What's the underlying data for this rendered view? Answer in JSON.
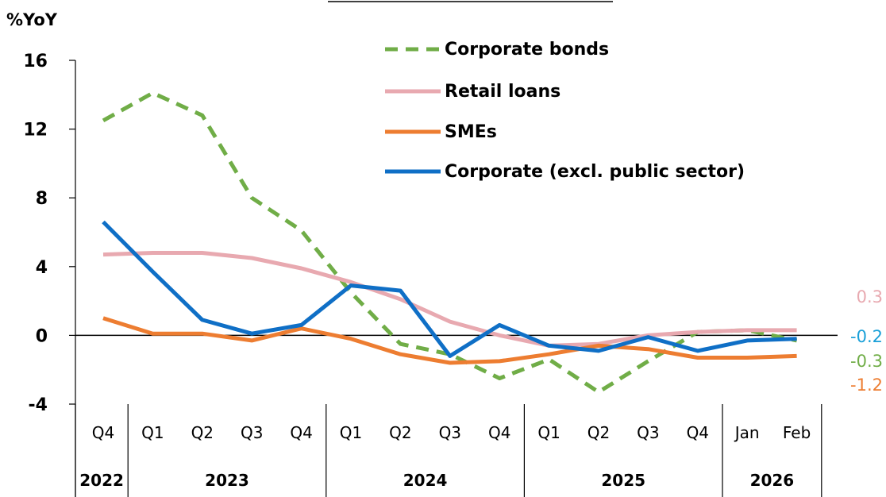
{
  "chart_data": {
    "type": "line",
    "ylabel": "%YoY",
    "ylim": [
      -4,
      16
    ],
    "yticks": [
      16,
      12,
      8,
      4,
      0,
      -4
    ],
    "categories": [
      "Q4",
      "Q1",
      "Q2",
      "Q3",
      "Q4",
      "Q1",
      "Q2",
      "Q3",
      "Q4",
      "Q1",
      "Q2",
      "Q3",
      "Q4",
      "Jan",
      "Feb"
    ],
    "year_groups": [
      {
        "label": "2022",
        "count": 1
      },
      {
        "label": "2023",
        "count": 4
      },
      {
        "label": "2024",
        "count": 4
      },
      {
        "label": "2025",
        "count": 4
      },
      {
        "label": "2026",
        "count": 2
      }
    ],
    "series": [
      {
        "name": "Corporate bonds",
        "color": "#70ad47",
        "dash": true,
        "values": [
          12.5,
          14.1,
          12.8,
          8.0,
          6.1,
          2.5,
          -0.5,
          -1.1,
          -2.5,
          -1.4,
          -3.3,
          -1.5,
          0.2,
          0.3,
          -0.3
        ],
        "end_label": "-0.3"
      },
      {
        "name": "Retail loans",
        "color": "#e8a9b0",
        "dash": false,
        "values": [
          4.7,
          4.8,
          4.8,
          4.5,
          3.9,
          3.1,
          2.1,
          0.8,
          0.0,
          -0.6,
          -0.5,
          0.0,
          0.2,
          0.3,
          0.3
        ],
        "end_label": "0.3"
      },
      {
        "name": "SMEs",
        "color": "#ed7d31",
        "dash": false,
        "values": [
          1.0,
          0.1,
          0.1,
          -0.3,
          0.4,
          -0.2,
          -1.1,
          -1.6,
          -1.5,
          -1.1,
          -0.6,
          -0.8,
          -1.3,
          -1.3,
          -1.2
        ],
        "end_label": "-1.2"
      },
      {
        "name": "Corporate (excl. public sector)",
        "color": "#0f6fc6",
        "dash": false,
        "values": [
          6.6,
          3.7,
          0.9,
          0.1,
          0.6,
          2.9,
          2.6,
          -1.2,
          0.6,
          -0.6,
          -0.9,
          -0.1,
          -0.9,
          -0.3,
          -0.2
        ],
        "end_label": "-0.2"
      }
    ],
    "end_label_colors": [
      "#e8a9b0",
      "#1aa0d8",
      "#70ad47",
      "#ed7d31"
    ],
    "legend_position": "top-right"
  }
}
